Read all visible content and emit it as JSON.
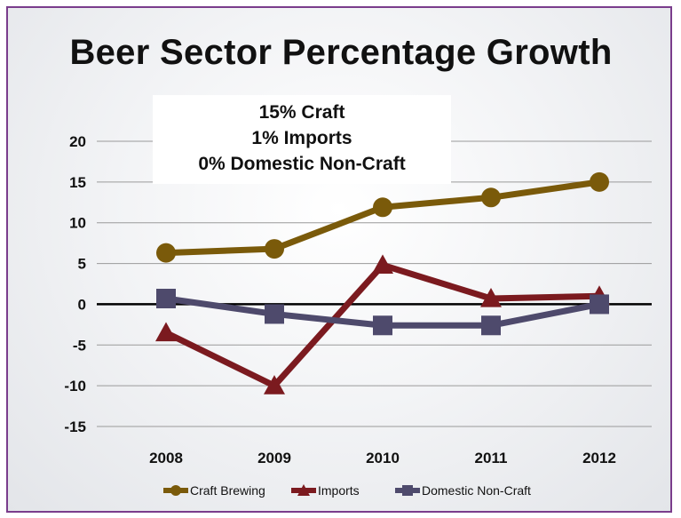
{
  "chart_data": {
    "type": "line",
    "title": "Beer Sector Percentage Growth",
    "annotation": [
      "15% Craft",
      "1% Imports",
      "0% Domestic Non-Craft"
    ],
    "categories": [
      "2008",
      "2009",
      "2010",
      "2011",
      "2012"
    ],
    "ylim": [
      -15,
      20
    ],
    "yticks": [
      20,
      15,
      10,
      5,
      0,
      -5,
      -10,
      -15
    ],
    "grid": true,
    "legend_position": "bottom",
    "series": [
      {
        "name": "Craft Brewing",
        "values": [
          6.3,
          6.8,
          11.9,
          13.1,
          15.0
        ],
        "color": "#7a5a0a",
        "marker": "circle"
      },
      {
        "name": "Imports",
        "values": [
          -3.5,
          -10.0,
          4.8,
          0.7,
          1.0
        ],
        "color": "#7b1a1f",
        "marker": "triangle"
      },
      {
        "name": "Domestic Non-Craft",
        "values": [
          0.7,
          -1.2,
          -2.6,
          -2.6,
          0.0
        ],
        "color": "#4e4a6c",
        "marker": "square"
      }
    ]
  }
}
